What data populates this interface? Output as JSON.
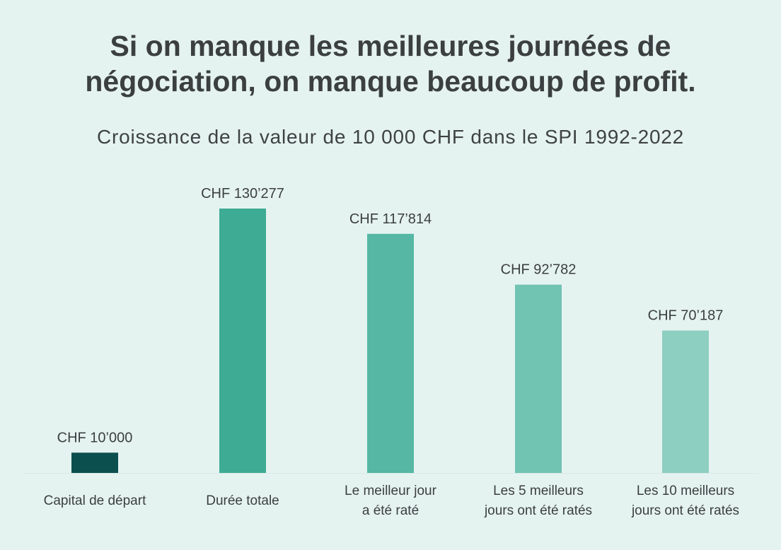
{
  "title_lines": [
    "Si on manque les meilleures journées de",
    "négociation, on manque beaucoup de profit."
  ],
  "subtitle": "Croissance de la valeur de 10 000 CHF dans le SPI 1992-2022",
  "chart_data": {
    "type": "bar",
    "categories": [
      [
        "Capital de départ"
      ],
      [
        "Durée totale"
      ],
      [
        "Le meilleur jour",
        "a été raté"
      ],
      [
        "Les 5 meilleurs",
        "jours ont été ratés"
      ],
      [
        "Les 10 meilleurs",
        "jours ont été ratés"
      ]
    ],
    "values": [
      10000,
      130277,
      117814,
      92782,
      70187
    ],
    "data_labels": [
      "CHF 10’000",
      "CHF 130’277",
      "CHF 117’814",
      "CHF 92’782",
      "CHF 70’187"
    ],
    "colors": [
      "#0b4f4f",
      "#3eab94",
      "#55b7a4",
      "#71c3b2",
      "#8dcfc1"
    ],
    "baseline_color": "#d8e8e4",
    "ylim": [
      0,
      130277
    ],
    "grid": false
  }
}
